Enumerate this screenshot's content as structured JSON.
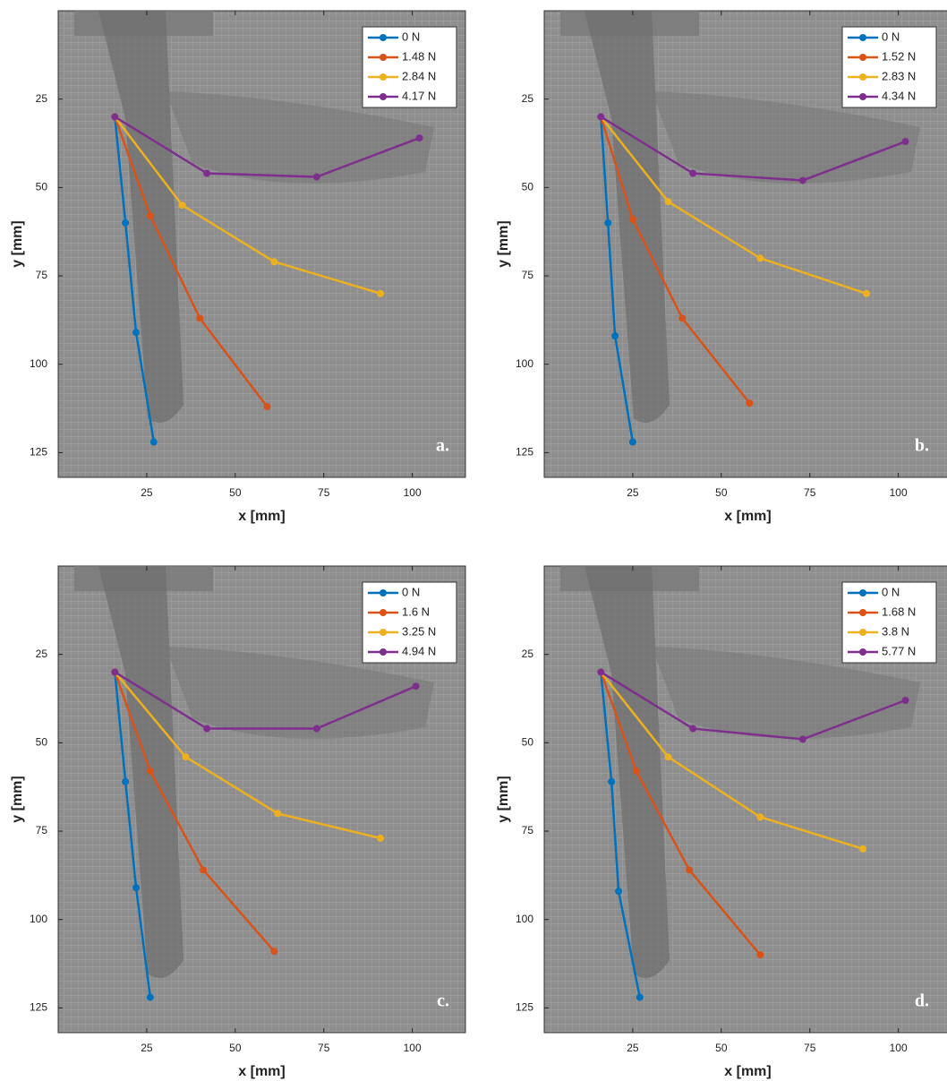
{
  "chart_data": [
    {
      "type": "line",
      "xlabel": "x [mm]",
      "ylabel": "y [mm]",
      "annotation": "a.",
      "xlim": [
        0,
        115
      ],
      "ylim": [
        132,
        0
      ],
      "xticks": [
        25,
        50,
        75,
        100
      ],
      "yticks": [
        25,
        50,
        75,
        100,
        125
      ],
      "legend": "top-right",
      "series": [
        {
          "name": "0 N",
          "color": "#0072bd",
          "x": [
            16,
            19,
            22,
            27
          ],
          "values": [
            30,
            60,
            91,
            122
          ]
        },
        {
          "name": "1.48 N",
          "color": "#d95319",
          "x": [
            16,
            26,
            40,
            59
          ],
          "values": [
            30,
            58,
            87,
            112
          ]
        },
        {
          "name": "2.84 N",
          "color": "#edb120",
          "x": [
            16,
            35,
            61,
            91
          ],
          "values": [
            30,
            55,
            71,
            80
          ]
        },
        {
          "name": "4.17 N",
          "color": "#7e2f8e",
          "x": [
            16,
            42,
            73,
            102
          ],
          "values": [
            30,
            46,
            47,
            36
          ]
        }
      ]
    },
    {
      "type": "line",
      "xlabel": "x [mm]",
      "ylabel": "y [mm]",
      "annotation": "b.",
      "xlim": [
        0,
        115
      ],
      "ylim": [
        132,
        0
      ],
      "xticks": [
        25,
        50,
        75,
        100
      ],
      "yticks": [
        25,
        50,
        75,
        100,
        125
      ],
      "legend": "top-right",
      "series": [
        {
          "name": "0 N",
          "color": "#0072bd",
          "x": [
            16,
            18,
            20,
            25
          ],
          "values": [
            30,
            60,
            92,
            122
          ]
        },
        {
          "name": "1.52 N",
          "color": "#d95319",
          "x": [
            16,
            25,
            39,
            58
          ],
          "values": [
            30,
            59,
            87,
            111
          ]
        },
        {
          "name": "2.83 N",
          "color": "#edb120",
          "x": [
            16,
            35,
            61,
            91
          ],
          "values": [
            30,
            54,
            70,
            80
          ]
        },
        {
          "name": "4.34 N",
          "color": "#7e2f8e",
          "x": [
            16,
            42,
            73,
            102
          ],
          "values": [
            30,
            46,
            48,
            37
          ]
        }
      ]
    },
    {
      "type": "line",
      "xlabel": "x [mm]",
      "ylabel": "y [mm]",
      "annotation": "c.",
      "xlim": [
        0,
        115
      ],
      "ylim": [
        132,
        0
      ],
      "xticks": [
        25,
        50,
        75,
        100
      ],
      "yticks": [
        25,
        50,
        75,
        100,
        125
      ],
      "legend": "top-right",
      "series": [
        {
          "name": "0 N",
          "color": "#0072bd",
          "x": [
            16,
            19,
            22,
            26
          ],
          "values": [
            30,
            61,
            91,
            122
          ]
        },
        {
          "name": "1.6 N",
          "color": "#d95319",
          "x": [
            16,
            26,
            41,
            61
          ],
          "values": [
            30,
            58,
            86,
            109
          ]
        },
        {
          "name": "3.25 N",
          "color": "#edb120",
          "x": [
            16,
            36,
            62,
            91
          ],
          "values": [
            30,
            54,
            70,
            77
          ]
        },
        {
          "name": "4.94 N",
          "color": "#7e2f8e",
          "x": [
            16,
            42,
            73,
            101
          ],
          "values": [
            30,
            46,
            46,
            34
          ]
        }
      ]
    },
    {
      "type": "line",
      "xlabel": "x [mm]",
      "ylabel": "y [mm]",
      "annotation": "d.",
      "xlim": [
        0,
        115
      ],
      "ylim": [
        132,
        0
      ],
      "xticks": [
        25,
        50,
        75,
        100
      ],
      "yticks": [
        25,
        50,
        75,
        100,
        125
      ],
      "legend": "top-right",
      "series": [
        {
          "name": "0 N",
          "color": "#0072bd",
          "x": [
            16,
            19,
            21,
            27
          ],
          "values": [
            30,
            61,
            92,
            122
          ]
        },
        {
          "name": "1.68 N",
          "color": "#d95319",
          "x": [
            16,
            26,
            41,
            61
          ],
          "values": [
            30,
            58,
            86,
            110
          ]
        },
        {
          "name": "3.8 N",
          "color": "#edb120",
          "x": [
            16,
            35,
            61,
            90
          ],
          "values": [
            30,
            54,
            71,
            80
          ]
        },
        {
          "name": "5.77 N",
          "color": "#7e2f8e",
          "x": [
            16,
            42,
            73,
            102
          ],
          "values": [
            30,
            46,
            49,
            38
          ]
        }
      ]
    }
  ]
}
